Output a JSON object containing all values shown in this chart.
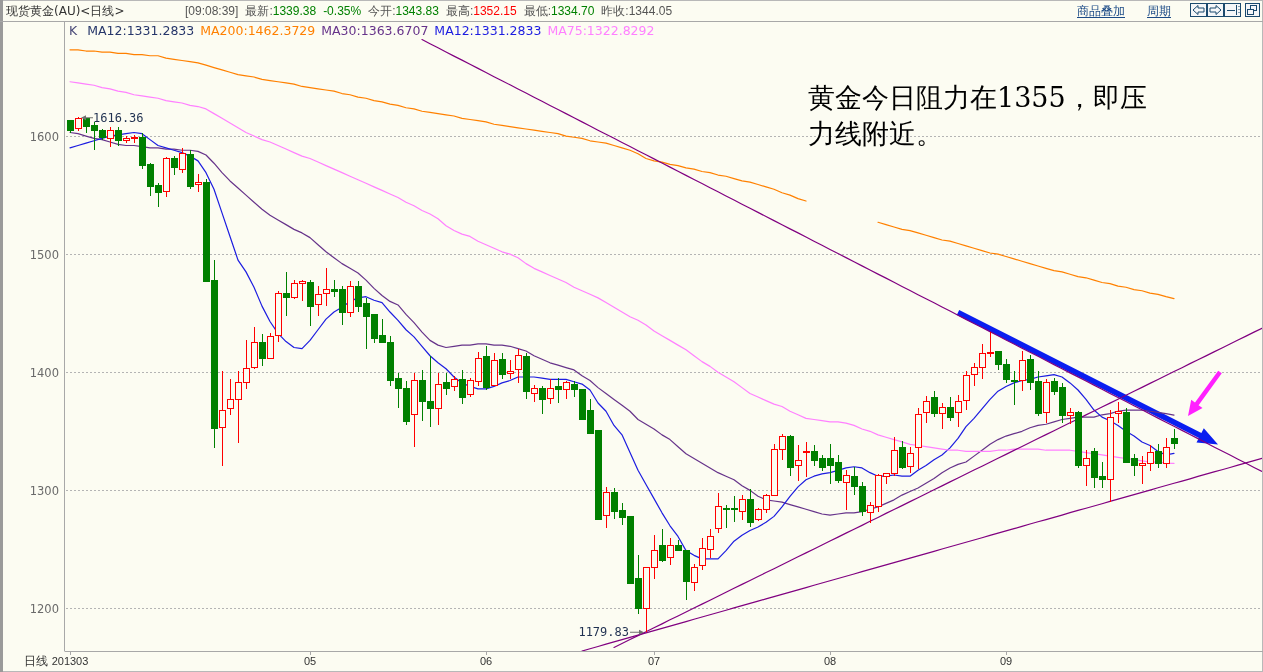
{
  "chart_data": {
    "type": "candlestick",
    "title": "现货黄金(AU)<日线>",
    "categories": [
      "201303",
      null,
      null,
      null,
      null,
      null,
      null,
      null,
      null,
      null,
      null,
      null,
      null,
      null,
      null,
      null,
      null,
      null,
      null,
      null,
      null,
      null,
      null,
      null,
      null,
      null,
      null,
      null,
      null,
      null,
      "05",
      null,
      null,
      null,
      null,
      null,
      null,
      null,
      null,
      null,
      null,
      null,
      null,
      null,
      null,
      null,
      null,
      null,
      null,
      null,
      null,
      null,
      "06",
      null,
      null,
      null,
      null,
      null,
      null,
      null,
      null,
      null,
      null,
      null,
      null,
      null,
      null,
      null,
      null,
      null,
      null,
      null,
      null,
      "07",
      null,
      null,
      null,
      null,
      null,
      null,
      null,
      null,
      null,
      null,
      null,
      null,
      null,
      null,
      null,
      null,
      null,
      null,
      null,
      null,
      null,
      "08",
      null,
      null,
      null,
      null,
      null,
      null,
      null,
      null,
      null,
      null,
      null,
      null,
      null,
      null,
      null,
      null,
      null,
      null,
      null,
      null,
      null,
      "09",
      null,
      null,
      null,
      null,
      null,
      null,
      null,
      null,
      null,
      null,
      null,
      null,
      null,
      null,
      null,
      null,
      null,
      null,
      null,
      null,
      null,
      null,
      null,
      null,
      null,
      null,
      null,
      null,
      null,
      null,
      null,
      null
    ],
    "ylim": [
      1164,
      1697
    ],
    "yticks": [
      1200,
      1300,
      1400,
      1500,
      1600
    ],
    "grid": "y",
    "legend": "top left",
    "ohlc": [
      [
        1613,
        1614,
        1603,
        1605
      ],
      [
        1606,
        1616.36,
        1604,
        1615
      ],
      [
        1615,
        1615,
        1603,
        1608
      ],
      [
        1609,
        1612,
        1588,
        1605
      ],
      [
        1605,
        1606,
        1597,
        1599
      ],
      [
        1598,
        1608,
        1591,
        1605
      ],
      [
        1605,
        1608,
        1592,
        1596
      ],
      [
        1596,
        1600,
        1594,
        1598
      ],
      [
        1598,
        1601,
        1594,
        1599
      ],
      [
        1599,
        1603,
        1572,
        1575
      ],
      [
        1576,
        1577,
        1549,
        1557
      ],
      [
        1558,
        1560,
        1540,
        1552
      ],
      [
        1553,
        1582,
        1548,
        1581
      ],
      [
        1581,
        1583,
        1567,
        1573
      ],
      [
        1572,
        1590,
        1569,
        1585
      ],
      [
        1584,
        1588,
        1555,
        1557
      ],
      [
        1559,
        1568,
        1553,
        1561
      ],
      [
        1561,
        1564,
        1477,
        1477
      ],
      [
        1478,
        1495,
        1336,
        1352
      ],
      [
        1353,
        1401,
        1321,
        1368
      ],
      [
        1369,
        1394,
        1364,
        1377
      ],
      [
        1377,
        1401,
        1340,
        1391
      ],
      [
        1391,
        1427,
        1386,
        1403
      ],
      [
        1404,
        1438,
        1403,
        1425
      ],
      [
        1425,
        1432,
        1405,
        1412
      ],
      [
        1412,
        1433,
        1411,
        1430
      ],
      [
        1431,
        1469,
        1426,
        1467
      ],
      [
        1467,
        1485,
        1448,
        1463
      ],
      [
        1463,
        1478,
        1462,
        1475
      ],
      [
        1475,
        1478,
        1460,
        1477
      ],
      [
        1476,
        1478,
        1439,
        1456
      ],
      [
        1457,
        1473,
        1448,
        1466
      ],
      [
        1467,
        1488,
        1456,
        1470
      ],
      [
        1470,
        1478,
        1464,
        1468
      ],
      [
        1470,
        1473,
        1440,
        1451
      ],
      [
        1451,
        1477,
        1447,
        1473
      ],
      [
        1473,
        1477,
        1451,
        1456
      ],
      [
        1458,
        1463,
        1420,
        1447
      ],
      [
        1449,
        1449,
        1425,
        1429
      ],
      [
        1431,
        1445,
        1425,
        1425
      ],
      [
        1425,
        1431,
        1388,
        1393
      ],
      [
        1395,
        1399,
        1370,
        1386
      ],
      [
        1386,
        1393,
        1355,
        1358
      ],
      [
        1364,
        1399,
        1337,
        1393
      ],
      [
        1393,
        1402,
        1359,
        1375
      ],
      [
        1375,
        1414,
        1354,
        1369
      ],
      [
        1369,
        1399,
        1355,
        1390
      ],
      [
        1391,
        1399,
        1381,
        1386
      ],
      [
        1388,
        1397,
        1384,
        1394
      ],
      [
        1394,
        1402,
        1373,
        1379
      ],
      [
        1381,
        1395,
        1379,
        1393
      ],
      [
        1392,
        1417,
        1388,
        1412
      ],
      [
        1413,
        1422,
        1385,
        1387
      ],
      [
        1389,
        1416,
        1388,
        1410
      ],
      [
        1411,
        1416,
        1394,
        1398
      ],
      [
        1399,
        1410,
        1394,
        1401
      ],
      [
        1402,
        1420,
        1391,
        1414
      ],
      [
        1413,
        1416,
        1377,
        1384
      ],
      [
        1382,
        1389,
        1375,
        1386
      ],
      [
        1386,
        1388,
        1365,
        1377
      ],
      [
        1378,
        1394,
        1373,
        1386
      ],
      [
        1388,
        1395,
        1374,
        1385
      ],
      [
        1385,
        1393,
        1377,
        1391
      ],
      [
        1390,
        1393,
        1379,
        1385
      ],
      [
        1385,
        1386,
        1360,
        1360
      ],
      [
        1368,
        1377,
        1348,
        1348
      ],
      [
        1351,
        1351,
        1275,
        1275
      ],
      [
        1279,
        1303,
        1268,
        1298
      ],
      [
        1298,
        1302,
        1276,
        1282
      ],
      [
        1283,
        1289,
        1271,
        1277
      ],
      [
        1278,
        1278,
        1221,
        1221
      ],
      [
        1225,
        1245,
        1195,
        1200
      ],
      [
        1200,
        1235,
        1179.83,
        1235
      ],
      [
        1235,
        1262,
        1225,
        1249
      ],
      [
        1253,
        1267,
        1239,
        1241
      ],
      [
        1243,
        1260,
        1237,
        1253
      ],
      [
        1253,
        1258,
        1249,
        1249
      ],
      [
        1249,
        1249,
        1207,
        1223
      ],
      [
        1222,
        1238,
        1215,
        1235
      ],
      [
        1236,
        1260,
        1233,
        1251
      ],
      [
        1250,
        1267,
        1243,
        1261
      ],
      [
        1268,
        1298,
        1264,
        1286
      ],
      [
        1285,
        1288,
        1268,
        1284
      ],
      [
        1285,
        1295,
        1273,
        1284
      ],
      [
        1282,
        1296,
        1275,
        1292
      ],
      [
        1292,
        1301,
        1269,
        1273
      ],
      [
        1275,
        1285,
        1274,
        1284
      ],
      [
        1284,
        1297,
        1281,
        1296
      ],
      [
        1296,
        1339,
        1295,
        1335
      ],
      [
        1335,
        1348,
        1326,
        1346
      ],
      [
        1346,
        1347,
        1312,
        1319
      ],
      [
        1321,
        1338,
        1308,
        1325
      ],
      [
        1332,
        1341,
        1311,
        1333
      ],
      [
        1333,
        1338,
        1321,
        1325
      ],
      [
        1327,
        1330,
        1316,
        1319
      ],
      [
        1327,
        1339,
        1305,
        1321
      ],
      [
        1324,
        1330,
        1306,
        1308
      ],
      [
        1307,
        1317,
        1283,
        1313
      ],
      [
        1312,
        1320,
        1296,
        1303
      ],
      [
        1303,
        1307,
        1278,
        1282
      ],
      [
        1281,
        1290,
        1272,
        1287
      ],
      [
        1286,
        1314,
        1282,
        1313
      ],
      [
        1312,
        1315,
        1305,
        1314
      ],
      [
        1314,
        1345,
        1312,
        1334
      ],
      [
        1336,
        1342,
        1318,
        1319
      ],
      [
        1320,
        1337,
        1315,
        1331
      ],
      [
        1336,
        1370,
        1318,
        1364
      ],
      [
        1366,
        1380,
        1357,
        1375
      ],
      [
        1379,
        1384,
        1362,
        1365
      ],
      [
        1365,
        1374,
        1352,
        1370
      ],
      [
        1370,
        1379,
        1359,
        1362
      ],
      [
        1366,
        1381,
        1354,
        1375
      ],
      [
        1376,
        1401,
        1368,
        1397
      ],
      [
        1398,
        1408,
        1388,
        1404
      ],
      [
        1404,
        1424,
        1394,
        1416
      ],
      [
        1416,
        1434,
        1413,
        1417
      ],
      [
        1418,
        1418,
        1402,
        1407
      ],
      [
        1407,
        1411,
        1391,
        1394
      ],
      [
        1393,
        1401,
        1372,
        1392
      ],
      [
        1393,
        1418,
        1384,
        1410
      ],
      [
        1411,
        1415,
        1385,
        1391
      ],
      [
        1392,
        1401,
        1363,
        1365
      ],
      [
        1366,
        1394,
        1357,
        1391
      ],
      [
        1392,
        1395,
        1381,
        1384
      ],
      [
        1387,
        1391,
        1357,
        1363
      ],
      [
        1363,
        1370,
        1356,
        1366
      ],
      [
        1366,
        1367,
        1319,
        1321
      ],
      [
        1321,
        1334,
        1304,
        1327
      ],
      [
        1333,
        1336,
        1302,
        1311
      ],
      [
        1312,
        1324,
        1302,
        1309
      ],
      [
        1309,
        1368,
        1290,
        1362
      ],
      [
        1365,
        1375,
        1357,
        1367
      ],
      [
        1366,
        1370,
        1324,
        1324
      ],
      [
        1327,
        1331,
        1312,
        1321
      ],
      [
        1321,
        1329,
        1305,
        1323
      ],
      [
        1323,
        1338,
        1316,
        1332
      ],
      [
        1333,
        1339,
        1319,
        1323
      ],
      [
        1323,
        1344,
        1319,
        1336
      ],
      [
        1343.83,
        1352.15,
        1334.7,
        1339.38
      ],
      null,
      null,
      null,
      null,
      null,
      null,
      null,
      null,
      null,
      null,
      null
    ],
    "series": [
      {
        "name": "MA200:1462.3729",
        "type": "line",
        "color": "#ff8000",
        "values": [
          1673,
          1673,
          1672,
          1672,
          1671,
          1671,
          1670,
          1670,
          1669,
          1669,
          1668,
          1668,
          1666,
          1665,
          1664,
          1663,
          1662,
          1660,
          1658,
          1656,
          1654,
          1652,
          1651,
          1650,
          1648,
          1647,
          1646,
          1645,
          1644,
          1642,
          1641,
          1640,
          1639,
          1638,
          1636,
          1635,
          1633,
          1632,
          1630,
          1629,
          1627,
          1626,
          1624,
          1623,
          1621,
          1620,
          1619,
          1618,
          1617,
          1615,
          1614,
          1613,
          1612,
          1610,
          1609,
          1608,
          1607,
          1606,
          1605,
          1604,
          1603,
          1602,
          1600,
          1599,
          1598,
          1596,
          1595,
          1594,
          1592,
          1590,
          1588,
          1585,
          1581,
          1579,
          1578,
          1576,
          1575,
          1573,
          1572,
          1570,
          1569,
          1567,
          1566,
          1564,
          1562,
          1561,
          1559,
          1557,
          1555,
          1552,
          1550,
          1547,
          1545,
          null,
          null,
          null,
          null,
          null,
          null,
          null,
          null,
          1527,
          1525,
          1523,
          1521,
          1520,
          1518,
          1516,
          1514,
          1512,
          1511,
          1509,
          1507,
          1505,
          1503,
          1501,
          1500,
          1498,
          1496,
          1494,
          1492,
          1490,
          1488,
          1486,
          1485,
          1483,
          1481,
          1480,
          1478,
          1476,
          1475,
          1473,
          1472,
          1470,
          1469,
          1467,
          1466,
          1464,
          1462.3729,
          null,
          null,
          null,
          null,
          null,
          null,
          null,
          null,
          null,
          null,
          null
        ]
      },
      {
        "name": "MA30:1363.6707",
        "type": "line",
        "color": "#66338a",
        "values": [
          1603,
          1602,
          1600,
          1598,
          1597,
          1595,
          1593,
          1592,
          1592,
          1591,
          1590,
          1590,
          1589,
          1589,
          1588,
          1588,
          1587,
          1584,
          1577,
          1569,
          1562,
          1556,
          1550,
          1544,
          1538,
          1533,
          1529,
          1525,
          1521,
          1518,
          1514,
          1508,
          1502,
          1497,
          1492,
          1488,
          1484,
          1478,
          1471,
          1465,
          1460,
          1457,
          1449,
          1442,
          1434,
          1427,
          1423,
          1421,
          1422,
          1423,
          1423,
          1424,
          1424,
          1423,
          1423,
          1422,
          1420,
          1418,
          1414,
          1411,
          1408,
          1406,
          1404,
          1402,
          1397,
          1393,
          1387,
          1382,
          1377,
          1372,
          1367,
          1360,
          1356,
          1352,
          1347,
          1343,
          1337,
          1331,
          1327,
          1323,
          1319,
          1315,
          1312,
          1309,
          1304,
          1300,
          1295,
          1292,
          1291,
          1290,
          1288,
          1286,
          1284,
          1282,
          1280,
          1279,
          1280,
          1281,
          1281,
          1282,
          1284,
          1286,
          1289,
          1292,
          1296,
          1299,
          1302,
          1306,
          1310,
          1315,
          1319,
          1322,
          1324,
          1329,
          1334,
          1339,
          1343,
          1346,
          1348,
          1350,
          1353,
          1355,
          1356,
          1358,
          1360,
          1361,
          1362,
          1362,
          1362,
          1364,
          1365,
          1367,
          1368,
          1368,
          1368,
          1367,
          1366,
          1365,
          1363.6707,
          null,
          null,
          null,
          null,
          null,
          null,
          null,
          null,
          null,
          null,
          null
        ]
      },
      {
        "name": "MA12:1331.2833",
        "type": "line",
        "color": "#1c1ce0",
        "values": [
          1590,
          1592,
          1594,
          1596,
          1598,
          1600,
          1601,
          1602,
          1603,
          1602,
          1597,
          1592,
          1590,
          1588,
          1586,
          1583,
          1579,
          1569,
          1555,
          1535,
          1515,
          1495,
          1485,
          1472,
          1456,
          1443,
          1433,
          1426,
          1421,
          1420,
          1427,
          1436,
          1445,
          1451,
          1455,
          1460,
          1463,
          1464,
          1461,
          1459,
          1451,
          1444,
          1436,
          1430,
          1422,
          1414,
          1408,
          1403,
          1396,
          1391,
          1388,
          1386,
          1386,
          1388,
          1391,
          1393,
          1396,
          1396,
          1396,
          1395,
          1394,
          1394,
          1394,
          1392,
          1390,
          1385,
          1374,
          1367,
          1355,
          1347,
          1332,
          1317,
          1305,
          1293,
          1281,
          1270,
          1261,
          1249,
          1245,
          1242,
          1242,
          1242,
          1249,
          1257,
          1262,
          1266,
          1269,
          1273,
          1278,
          1286,
          1295,
          1303,
          1309,
          1312,
          1314,
          1315,
          1317,
          1319,
          1320,
          1319,
          1315,
          1312,
          1312,
          1313,
          1312,
          1312,
          1317,
          1321,
          1326,
          1330,
          1336,
          1344,
          1354,
          1361,
          1369,
          1377,
          1384,
          1388,
          1391,
          1393,
          1394,
          1396,
          1397,
          1398,
          1396,
          1391,
          1385,
          1377,
          1368,
          1362,
          1359,
          1355,
          1350,
          1346,
          1341,
          1338,
          1333,
          1330,
          1331.2833,
          null,
          null,
          null,
          null,
          null,
          null,
          null,
          null,
          null,
          null,
          null
        ]
      },
      {
        "name": "MA75:1322.8292",
        "type": "line",
        "color": "#ff80ff",
        "values": [
          1646,
          1645,
          1644,
          1643,
          1641,
          1640,
          1638,
          1637,
          1635,
          1634,
          1633,
          1632,
          1630,
          1629,
          1628,
          1626,
          1625,
          1623,
          1619,
          1615,
          1611,
          1607,
          1603,
          1600,
          1597,
          1595,
          1592,
          1589,
          1586,
          1583,
          1581,
          1578,
          1575,
          1572,
          1569,
          1566,
          1563,
          1560,
          1557,
          1554,
          1551,
          1548,
          1544,
          1541,
          1537,
          1534,
          1530,
          1524,
          1520,
          1517,
          1515,
          1511,
          1508,
          1505,
          1502,
          1500,
          1497,
          1492,
          1488,
          1485,
          1482,
          1479,
          1476,
          1472,
          1469,
          1466,
          1463,
          1459,
          1455,
          1451,
          1447,
          1444,
          1440,
          1435,
          1431,
          1427,
          1423,
          1419,
          1414,
          1409,
          1405,
          1400,
          1396,
          1392,
          1387,
          1382,
          1379,
          1376,
          1373,
          1371,
          1367,
          1364,
          1361,
          1360,
          1359,
          1358,
          1358,
          1357,
          1355,
          1352,
          1350,
          1347,
          1345,
          1343,
          1341,
          1339,
          1338,
          1337,
          1336,
          1335,
          1334,
          1334,
          1333,
          1333,
          1333,
          1333,
          1334,
          1334,
          1335,
          1335,
          1335,
          1335,
          1334,
          1334,
          1334,
          1334,
          1333,
          1332,
          1331,
          1330,
          1329,
          1328,
          1327,
          1326,
          1325,
          1324,
          1324,
          1323,
          1322.8292,
          null,
          null,
          null,
          null,
          null,
          null,
          null,
          null,
          null,
          null,
          null
        ]
      },
      {
        "type": "line",
        "color": "#800080",
        "values": [
          null,
          null,
          null,
          null,
          null,
          null,
          null,
          null,
          null,
          null,
          null,
          null,
          null,
          null,
          null,
          null,
          null,
          null,
          null,
          null,
          null,
          null,
          null,
          null,
          null,
          null,
          null,
          null,
          null,
          null,
          null,
          null,
          null,
          null,
          null,
          null,
          null,
          null,
          null,
          null,
          null,
          null,
          null,
          null,
          1681.7,
          1678.2,
          1674.7,
          1671.2,
          1667.7,
          1664.3,
          1660.8,
          1657.3,
          1653.8,
          1650.3,
          1646.8,
          1643.4,
          1639.9,
          1636.4,
          1632.9,
          1629.4,
          1625.9,
          1622.5,
          1619.0,
          1615.5,
          1612.0,
          1608.5,
          1605.0,
          1601.6,
          1598.1,
          1594.6,
          1591.1,
          1587.6,
          1584.1,
          1580.7,
          1577.2,
          1573.7,
          1570.2,
          1566.7,
          1563.2,
          1559.8,
          1556.3,
          1552.8,
          1549.3,
          1545.8,
          1542.3,
          1538.9,
          1535.4,
          1531.9,
          1528.4,
          1524.9,
          1521.4,
          1518.0,
          1514.5,
          1511.0,
          1507.5,
          1504.0,
          1500.5,
          1497.1,
          1493.6,
          1490.1,
          1486.6,
          1483.1,
          1479.7,
          1476.2,
          1472.7,
          1469.2,
          1465.7,
          1462.2,
          1458.8,
          1455.3,
          1451.8,
          1448.3,
          1444.8,
          1441.3,
          1437.9,
          1434.4,
          1430.9,
          1427.4,
          1423.9,
          1420.4,
          1417.0,
          1413.5,
          1410.0,
          1406.5,
          1403.0,
          1399.5,
          1396.1,
          1392.6,
          1389.1,
          1385.6,
          1382.1,
          1378.6,
          1375.2,
          1371.7,
          1368.2,
          1364.7,
          1361.2,
          1357.7,
          1354.3,
          1350.8,
          1347.3,
          1343.8,
          1340.3,
          1336.8,
          1333.4,
          1329.9,
          1326.4,
          1322.9,
          1319.4,
          1316.0
        ]
      },
      {
        "type": "line",
        "color": "#800080",
        "values": [
          null,
          null,
          null,
          null,
          null,
          null,
          null,
          null,
          null,
          null,
          null,
          null,
          null,
          null,
          null,
          null,
          null,
          null,
          null,
          null,
          null,
          null,
          null,
          null,
          null,
          null,
          null,
          null,
          null,
          null,
          null,
          null,
          null,
          null,
          null,
          null,
          null,
          null,
          null,
          null,
          null,
          null,
          null,
          null,
          null,
          null,
          null,
          null,
          null,
          null,
          null,
          null,
          null,
          null,
          null,
          null,
          null,
          null,
          null,
          null,
          null,
          null,
          null,
          null,
          null,
          null,
          null,
          null,
          1167.0,
          1170.3,
          1173.7,
          1177.0,
          1180.3,
          1183.7,
          1187.0,
          1190.4,
          1193.7,
          1197.0,
          1200.4,
          1203.7,
          1207.0,
          1210.4,
          1213.7,
          1217.1,
          1220.4,
          1223.7,
          1227.1,
          1230.4,
          1233.7,
          1237.1,
          1240.4,
          1243.8,
          1247.1,
          1250.4,
          1253.8,
          1257.1,
          1260.4,
          1263.8,
          1267.1,
          1270.4,
          1273.8,
          1277.1,
          1280.5,
          1283.8,
          1287.1,
          1290.5,
          1293.8,
          1297.1,
          1300.5,
          1303.8,
          1307.2,
          1310.5,
          1313.8,
          1317.2,
          1320.5,
          1323.8,
          1327.2,
          1330.5,
          1333.9,
          1337.2,
          1340.5,
          1343.9,
          1347.2,
          1350.5,
          1353.9,
          1357.2,
          1360.5,
          1363.9,
          1367.2,
          1370.6,
          1373.9,
          1377.2,
          1380.6,
          1383.9,
          1387.2,
          1390.6,
          1393.9,
          1397.3,
          1400.6,
          1403.9,
          1407.3,
          1410.6,
          1413.9,
          1417.3,
          1420.6,
          1424.0,
          1427.3,
          1430.6,
          1434.0,
          1437.3
        ]
      },
      {
        "type": "line",
        "color": "#800080",
        "values": [
          null,
          null,
          null,
          null,
          null,
          null,
          null,
          null,
          null,
          null,
          null,
          null,
          null,
          null,
          null,
          null,
          null,
          null,
          null,
          null,
          null,
          null,
          null,
          null,
          null,
          null,
          null,
          null,
          null,
          null,
          null,
          null,
          null,
          null,
          null,
          null,
          null,
          null,
          null,
          null,
          null,
          null,
          null,
          null,
          null,
          null,
          null,
          null,
          null,
          null,
          null,
          null,
          null,
          null,
          null,
          null,
          null,
          null,
          null,
          null,
          null,
          null,
          null,
          null,
          1164.0,
          1165.9,
          1167.8,
          1169.8,
          1171.7,
          1173.6,
          1175.5,
          1177.4,
          1179.4,
          1181.3,
          1183.2,
          1185.1,
          1187.0,
          1188.9,
          1190.9,
          1192.8,
          1194.7,
          1196.6,
          1198.5,
          1200.5,
          1202.4,
          1204.3,
          1206.2,
          1208.1,
          1210.1,
          1212.0,
          1213.9,
          1215.8,
          1217.7,
          1219.7,
          1221.6,
          1223.5,
          1225.4,
          1227.3,
          1229.2,
          1231.2,
          1233.1,
          1235.0,
          1236.9,
          1238.8,
          1240.8,
          1242.7,
          1244.6,
          1246.5,
          1248.4,
          1250.4,
          1252.3,
          1254.2,
          1256.1,
          1258.0,
          1259.9,
          1261.9,
          1263.8,
          1265.7,
          1267.6,
          1269.5,
          1271.5,
          1273.4,
          1275.3,
          1277.2,
          1279.1,
          1281.1,
          1283.0,
          1284.9,
          1286.8,
          1288.7,
          1290.7,
          1292.6,
          1294.5,
          1296.4,
          1298.3,
          1300.2,
          1302.2,
          1304.1,
          1306.0,
          1307.9,
          1309.8,
          1311.8,
          1313.7,
          1315.6,
          1317.5,
          1319.4,
          1321.4,
          1323.3,
          1325.2,
          1327.1
        ]
      }
    ],
    "annotations": [
      "K",
      "MA12:1331.2833",
      "[09:08:39]",
      "最新:1339.38",
      "-0.35%",
      "今开:1343.83",
      "最高:1352.15",
      "最低:1334.70",
      "昨收:1344.05",
      "商品叠加",
      "周期",
      "日线",
      "1616.36",
      "1179.83",
      "黄金今日阻力在1355，即压力线附近。"
    ]
  }
}
